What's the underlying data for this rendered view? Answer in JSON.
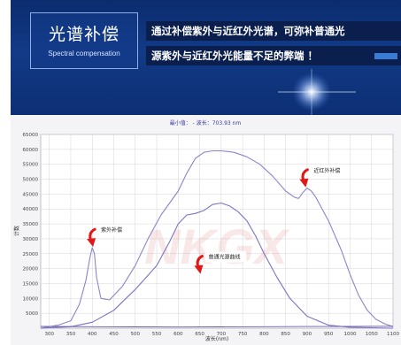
{
  "banner": {
    "title": "光谱补偿",
    "subtitle": "Spectral compensation",
    "line1": "通过补偿紫外与近红外光谱，可弥补普通光",
    "line2": "源紫外与近红外光能量不足的弊端 ！",
    "colors": {
      "background": "#0f3580",
      "text_box": "#0a1f4e",
      "accent": "#3a7bd5"
    }
  },
  "chart_data": {
    "type": "line",
    "title": "最小值： -    波长：703.93 nm",
    "xlabel": "波长(nm)",
    "ylabel": "计数",
    "xlim": [
      280,
      1100
    ],
    "ylim": [
      0,
      65000
    ],
    "xticks": [
      300,
      350,
      400,
      450,
      500,
      550,
      600,
      650,
      700,
      750,
      800,
      850,
      900,
      950,
      1000,
      1050,
      1100
    ],
    "yticks": [
      5000,
      10000,
      15000,
      20000,
      25000,
      30000,
      35000,
      40000,
      45000,
      50000,
      55000,
      60000,
      65000
    ],
    "grid": true,
    "watermark": "NKGX",
    "series": [
      {
        "x": [
          280,
          320,
          350,
          370,
          385,
          395,
          400,
          405,
          410,
          420,
          440,
          470,
          500,
          530,
          560,
          580,
          600,
          620,
          640,
          660,
          680,
          700,
          730,
          760,
          790,
          820,
          850,
          870,
          880,
          890,
          900,
          910,
          920,
          950,
          980,
          1000,
          1020,
          1040,
          1060,
          1080,
          1100
        ],
        "values": [
          0,
          1000,
          2500,
          8000,
          16000,
          24000,
          27000,
          25000,
          17000,
          10000,
          9500,
          14000,
          21000,
          30000,
          38000,
          42000,
          46000,
          52000,
          57000,
          59000,
          59500,
          59500,
          59000,
          57500,
          55000,
          51000,
          46000,
          44000,
          43500,
          45500,
          47000,
          46000,
          44000,
          36000,
          26000,
          18000,
          11000,
          6000,
          3000,
          1500,
          500
        ]
      },
      {
        "x": [
          280,
          350,
          400,
          450,
          500,
          550,
          580,
          600,
          620,
          640,
          660,
          680,
          700,
          720,
          740,
          760,
          780,
          800,
          830,
          860,
          900,
          950,
          1000,
          1100
        ],
        "values": [
          0,
          500,
          2000,
          6000,
          13000,
          21000,
          29000,
          35000,
          38000,
          38500,
          39500,
          41500,
          42000,
          41000,
          39000,
          36000,
          31000,
          25000,
          17000,
          10000,
          4000,
          1000,
          300,
          0
        ]
      },
      {
        "x": [
          280,
          400,
          500,
          600,
          700,
          800,
          900,
          1000,
          1100
        ],
        "values": [
          600,
          500,
          450,
          400,
          450,
          500,
          550,
          600,
          650
        ]
      }
    ],
    "annotations": [
      {
        "text": "紫外补偿",
        "x": 410,
        "y": 32000
      },
      {
        "text": "普通光源曲线",
        "x": 660,
        "y": 23000
      },
      {
        "text": "近红外补偿",
        "x": 905,
        "y": 52000
      }
    ],
    "colors": {
      "line1": "#8a86c8",
      "line2": "#7a74c0",
      "baseline": "#6a5aa8",
      "arrow": "#e01818",
      "grid": "#d4d4dc"
    }
  }
}
